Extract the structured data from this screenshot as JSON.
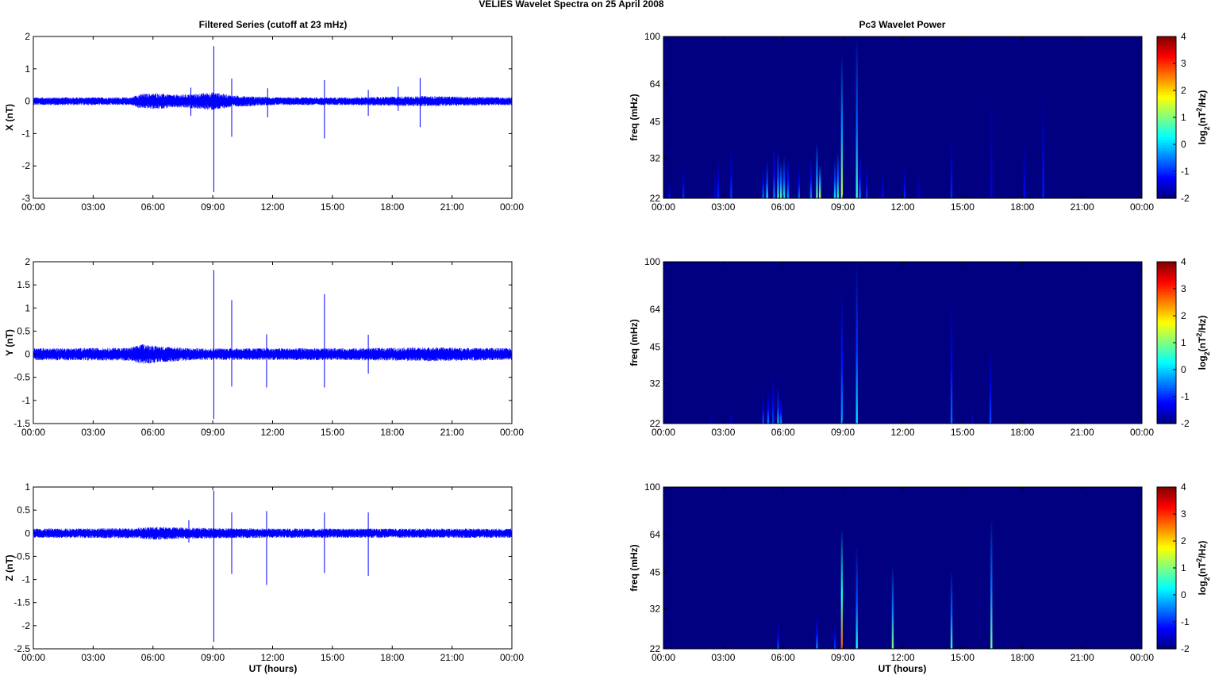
{
  "figure": {
    "title": "VELIES Wavelet Spectra on 25 April     2008",
    "left_column_title": "Filtered Series (cutoff at 23 mHz)",
    "right_column_title": "Pc3 Wavelet Power",
    "xlabel": "UT (hours)",
    "colorbar_label": "log2(nT2/Hz)"
  },
  "chart_data": [
    {
      "type": "line",
      "panel": "X",
      "ylabel": "X (nT)",
      "ylim": [
        -3,
        2
      ],
      "yticks": [
        "2",
        "1",
        "0",
        "-1",
        "-2",
        "-3"
      ],
      "yticks_values": [
        2,
        1,
        0,
        -1,
        -2,
        -3
      ],
      "xlim": [
        0,
        24
      ],
      "xticks": [
        "00:00",
        "03:00",
        "06:00",
        "09:00",
        "12:00",
        "15:00",
        "18:00",
        "21:00",
        "00:00"
      ],
      "series": [
        {
          "color": "#0000ff",
          "noise_envelope": [
            [
              0,
              0.12
            ],
            [
              4.9,
              0.12
            ],
            [
              5.3,
              0.22
            ],
            [
              6.2,
              0.25
            ],
            [
              7,
              0.2
            ],
            [
              8,
              0.22
            ],
            [
              9,
              0.28
            ],
            [
              10,
              0.18
            ],
            [
              12,
              0.12
            ],
            [
              16,
              0.12
            ],
            [
              19.5,
              0.16
            ],
            [
              24,
              0.12
            ]
          ],
          "spikes": [
            {
              "t": 9.05,
              "max": 1.7,
              "min": -2.8
            },
            {
              "t": 9.95,
              "max": 0.7,
              "min": -1.1
            },
            {
              "t": 11.75,
              "max": 0.4,
              "min": -0.5
            },
            {
              "t": 14.6,
              "max": 0.65,
              "min": -1.15
            },
            {
              "t": 16.8,
              "max": 0.35,
              "min": -0.45
            },
            {
              "t": 18.3,
              "max": 0.45,
              "min": -0.3
            },
            {
              "t": 19.4,
              "max": 0.72,
              "min": -0.8
            },
            {
              "t": 7.9,
              "max": 0.42,
              "min": -0.45
            }
          ]
        }
      ]
    },
    {
      "type": "line",
      "panel": "Y",
      "ylabel": "Y (nT)",
      "ylim": [
        -1.5,
        2
      ],
      "yticks": [
        "2",
        "1.5",
        "1",
        "0.5",
        "0",
        "-0.5",
        "-1",
        "-1.5"
      ],
      "yticks_values": [
        2,
        1.5,
        1,
        0.5,
        0,
        -0.5,
        -1,
        -1.5
      ],
      "xlim": [
        0,
        24
      ],
      "xticks": [
        "00:00",
        "03:00",
        "06:00",
        "09:00",
        "12:00",
        "15:00",
        "18:00",
        "21:00",
        "00:00"
      ],
      "series": [
        {
          "color": "#0000ff",
          "noise_envelope": [
            [
              0,
              0.13
            ],
            [
              4.8,
              0.14
            ],
            [
              5.5,
              0.22
            ],
            [
              6.2,
              0.18
            ],
            [
              8,
              0.13
            ],
            [
              12,
              0.13
            ],
            [
              16,
              0.13
            ],
            [
              20,
              0.15
            ],
            [
              24,
              0.13
            ]
          ],
          "spikes": [
            {
              "t": 9.05,
              "max": 1.82,
              "min": -1.4
            },
            {
              "t": 9.95,
              "max": 1.17,
              "min": -0.7
            },
            {
              "t": 11.7,
              "max": 0.43,
              "min": -0.72
            },
            {
              "t": 14.6,
              "max": 1.3,
              "min": -0.72
            },
            {
              "t": 16.8,
              "max": 0.42,
              "min": -0.42
            }
          ]
        }
      ]
    },
    {
      "type": "line",
      "panel": "Z",
      "ylabel": "Z (nT)",
      "ylim": [
        -2.5,
        1
      ],
      "yticks": [
        "1",
        "0.5",
        "0",
        "-0.5",
        "-1",
        "-1.5",
        "-2",
        "-2.5"
      ],
      "yticks_values": [
        1,
        0.5,
        0,
        -0.5,
        -1,
        -1.5,
        -2,
        -2.5
      ],
      "xlim": [
        0,
        24
      ],
      "xticks": [
        "00:00",
        "03:00",
        "06:00",
        "09:00",
        "12:00",
        "15:00",
        "18:00",
        "21:00",
        "00:00"
      ],
      "series": [
        {
          "color": "#0000ff",
          "noise_envelope": [
            [
              0,
              0.1
            ],
            [
              5,
              0.11
            ],
            [
              6,
              0.14
            ],
            [
              8,
              0.12
            ],
            [
              12,
              0.1
            ],
            [
              24,
              0.1
            ]
          ],
          "spikes": [
            {
              "t": 9.05,
              "max": 0.92,
              "min": -2.35
            },
            {
              "t": 9.95,
              "max": 0.45,
              "min": -0.88
            },
            {
              "t": 11.7,
              "max": 0.48,
              "min": -1.12
            },
            {
              "t": 14.6,
              "max": 0.45,
              "min": -0.86
            },
            {
              "t": 16.8,
              "max": 0.45,
              "min": -0.92
            },
            {
              "t": 7.8,
              "max": 0.28,
              "min": -0.2
            }
          ]
        }
      ]
    },
    {
      "type": "heatmap",
      "panel": "X",
      "ylabel": "freq (mHz)",
      "yscale": "log",
      "ylim": [
        22,
        100
      ],
      "yticks": [
        "100",
        "64",
        "45",
        "32",
        "22"
      ],
      "yticks_values": [
        100,
        64,
        45,
        32,
        22
      ],
      "xlim": [
        0,
        24
      ],
      "xticks": [
        "00:00",
        "03:00",
        "06:00",
        "09:00",
        "12:00",
        "15:00",
        "18:00",
        "21:00",
        "00:00"
      ],
      "clim": [
        -2,
        4
      ],
      "colorbar_ticks": [
        "4",
        "3",
        "2",
        "1",
        "0",
        "-1",
        "-2"
      ],
      "background_value": -2,
      "bursts": [
        {
          "t": 0.3,
          "top": 26,
          "peak": -1.2
        },
        {
          "t": 1.0,
          "top": 30,
          "peak": -1.0
        },
        {
          "t": 2.6,
          "top": 29,
          "peak": -1.3
        },
        {
          "t": 2.75,
          "top": 32,
          "peak": -1.0
        },
        {
          "t": 3.4,
          "top": 36,
          "peak": -0.9
        },
        {
          "t": 5.0,
          "top": 30,
          "peak": -0.6
        },
        {
          "t": 5.2,
          "top": 31,
          "peak": 0.2
        },
        {
          "t": 5.55,
          "top": 37,
          "peak": -0.5
        },
        {
          "t": 5.75,
          "top": 34,
          "peak": 0.4
        },
        {
          "t": 5.9,
          "top": 31,
          "peak": 0.8
        },
        {
          "t": 6.05,
          "top": 33,
          "peak": 0.3
        },
        {
          "t": 6.25,
          "top": 32,
          "peak": -0.3
        },
        {
          "t": 6.8,
          "top": 30,
          "peak": -0.6
        },
        {
          "t": 7.4,
          "top": 32,
          "peak": -0.4
        },
        {
          "t": 7.7,
          "top": 37,
          "peak": 0.9
        },
        {
          "t": 7.85,
          "top": 30,
          "peak": 1.5
        },
        {
          "t": 8.6,
          "top": 32,
          "peak": 0.2
        },
        {
          "t": 8.75,
          "top": 34,
          "peak": 0.5
        },
        {
          "t": 8.95,
          "top": 84,
          "peak": 1.3
        },
        {
          "t": 9.7,
          "top": 100,
          "peak": 0.6
        },
        {
          "t": 9.85,
          "top": 34,
          "peak": -0.4
        },
        {
          "t": 10.2,
          "top": 30,
          "peak": -0.9
        },
        {
          "t": 11.0,
          "top": 29,
          "peak": -1.2
        },
        {
          "t": 12.1,
          "top": 30,
          "peak": -1.0
        },
        {
          "t": 12.8,
          "top": 28,
          "peak": -1.4
        },
        {
          "t": 14.45,
          "top": 40,
          "peak": -1.0
        },
        {
          "t": 16.45,
          "top": 60,
          "peak": -1.4
        },
        {
          "t": 18.1,
          "top": 38,
          "peak": -1.2
        },
        {
          "t": 19.05,
          "top": 62,
          "peak": -1.1
        }
      ]
    },
    {
      "type": "heatmap",
      "panel": "Y",
      "ylabel": "freq (mHz)",
      "yscale": "log",
      "ylim": [
        22,
        100
      ],
      "yticks": [
        "100",
        "64",
        "45",
        "32",
        "22"
      ],
      "yticks_values": [
        100,
        64,
        45,
        32,
        22
      ],
      "xlim": [
        0,
        24
      ],
      "xticks": [
        "00:00",
        "03:00",
        "06:00",
        "09:00",
        "12:00",
        "15:00",
        "18:00",
        "21:00",
        "00:00"
      ],
      "clim": [
        -2,
        4
      ],
      "colorbar_ticks": [
        "4",
        "3",
        "2",
        "1",
        "0",
        "-1",
        "-2"
      ],
      "background_value": -2,
      "bursts": [
        {
          "t": 2.4,
          "top": 24,
          "peak": -1.5
        },
        {
          "t": 3.4,
          "top": 25,
          "peak": -1.4
        },
        {
          "t": 5.0,
          "top": 29,
          "peak": -0.8
        },
        {
          "t": 5.25,
          "top": 30,
          "peak": -0.5
        },
        {
          "t": 5.5,
          "top": 35,
          "peak": -0.9
        },
        {
          "t": 5.75,
          "top": 31,
          "peak": -0.1
        },
        {
          "t": 5.9,
          "top": 28,
          "peak": -0.4
        },
        {
          "t": 8.95,
          "top": 75,
          "peak": -0.3
        },
        {
          "t": 9.7,
          "top": 100,
          "peak": 0.1
        },
        {
          "t": 14.45,
          "top": 70,
          "peak": -0.6
        },
        {
          "t": 15.5,
          "top": 25,
          "peak": -1.4
        },
        {
          "t": 16.4,
          "top": 45,
          "peak": -0.8
        }
      ]
    },
    {
      "type": "heatmap",
      "panel": "Z",
      "ylabel": "freq (mHz)",
      "yscale": "log",
      "ylim": [
        22,
        100
      ],
      "yticks": [
        "100",
        "64",
        "45",
        "32",
        "22"
      ],
      "yticks_values": [
        100,
        64,
        45,
        32,
        22
      ],
      "xlim": [
        0,
        24
      ],
      "xticks": [
        "00:00",
        "03:00",
        "06:00",
        "09:00",
        "12:00",
        "15:00",
        "18:00",
        "21:00",
        "00:00"
      ],
      "clim": [
        -2,
        4
      ],
      "colorbar_ticks": [
        "4",
        "3",
        "2",
        "1",
        "0",
        "-1",
        "-2"
      ],
      "background_value": -2,
      "bursts": [
        {
          "t": 5.75,
          "top": 28,
          "peak": -0.8
        },
        {
          "t": 7.7,
          "top": 30,
          "peak": -0.4
        },
        {
          "t": 8.6,
          "top": 28,
          "peak": -0.9
        },
        {
          "t": 8.95,
          "top": 68,
          "peak": 2.8
        },
        {
          "t": 9.7,
          "top": 58,
          "peak": 0.4
        },
        {
          "t": 11.5,
          "top": 48,
          "peak": 1.0
        },
        {
          "t": 14.45,
          "top": 46,
          "peak": 0.6
        },
        {
          "t": 16.45,
          "top": 75,
          "peak": 0.9
        }
      ]
    }
  ]
}
